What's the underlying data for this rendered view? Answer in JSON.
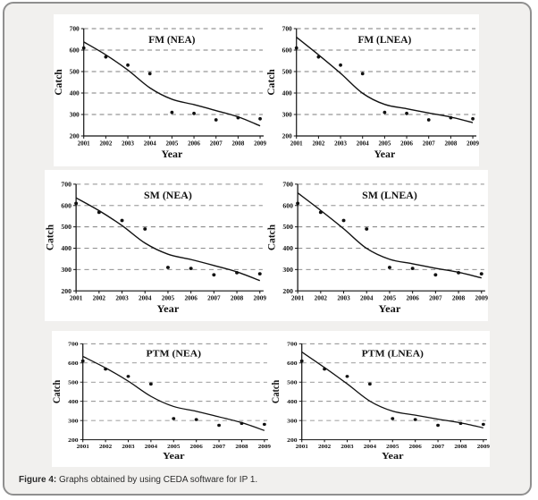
{
  "colors": {
    "card_bg": "#f1f0ee",
    "card_border": "#8f8f8f",
    "panel_bg": "#ffffff",
    "ink": "#111111",
    "grid": "#7d7d7d",
    "caption_text": "#2b2b2b"
  },
  "caption": {
    "prefix": "Figure 4:",
    "text": " Graphs obtained by using CEDA software for IP 1."
  },
  "axis": {
    "xlabel": "Year",
    "ylabel": "Catch",
    "yticks": [
      200,
      300,
      400,
      500,
      600,
      700
    ],
    "years": [
      2001,
      2002,
      2003,
      2004,
      2005,
      2006,
      2007,
      2008,
      2009
    ],
    "ylim": [
      200,
      700
    ],
    "grid": "dashed-horizontal",
    "legend": "none"
  },
  "chart_data": [
    {
      "type": "scatter",
      "title": "FM (NEA)",
      "xlabel": "Year",
      "ylabel": "Catch",
      "ylim": [
        200,
        700
      ],
      "x": [
        2001,
        2002,
        2003,
        2004,
        2005,
        2006,
        2007,
        2008,
        2009
      ],
      "series": [
        {
          "name": "observed-catch",
          "type": "scatter",
          "values": [
            610,
            568,
            530,
            490,
            310,
            305,
            275,
            285,
            280
          ]
        },
        {
          "name": "fitted-curve",
          "type": "line",
          "values": [
            638,
            578,
            507,
            424,
            371,
            346,
            318,
            289,
            247
          ]
        }
      ]
    },
    {
      "type": "scatter",
      "title": "FM (LNEA)",
      "xlabel": "Year",
      "ylabel": "Catch",
      "ylim": [
        200,
        700
      ],
      "x": [
        2001,
        2002,
        2003,
        2004,
        2005,
        2006,
        2007,
        2008,
        2009
      ],
      "series": [
        {
          "name": "observed-catch",
          "type": "scatter",
          "values": [
            610,
            568,
            530,
            490,
            310,
            305,
            275,
            285,
            280
          ]
        },
        {
          "name": "fitted-curve",
          "type": "line",
          "values": [
            660,
            578,
            492,
            399,
            347,
            327,
            307,
            288,
            262
          ]
        }
      ]
    },
    {
      "type": "scatter",
      "title": "SM (NEA)",
      "xlabel": "Year",
      "ylabel": "Catch",
      "ylim": [
        200,
        700
      ],
      "x": [
        2001,
        2002,
        2003,
        2004,
        2005,
        2006,
        2007,
        2008,
        2009
      ],
      "series": [
        {
          "name": "observed-catch",
          "type": "scatter",
          "values": [
            610,
            568,
            530,
            490,
            310,
            305,
            275,
            285,
            280
          ]
        },
        {
          "name": "fitted-curve",
          "type": "line",
          "values": [
            636,
            576,
            506,
            424,
            372,
            347,
            319,
            289,
            248
          ]
        }
      ]
    },
    {
      "type": "scatter",
      "title": "SM (LNEA)",
      "xlabel": "Year",
      "ylabel": "Catch",
      "ylim": [
        200,
        700
      ],
      "x": [
        2001,
        2002,
        2003,
        2004,
        2005,
        2006,
        2007,
        2008,
        2009
      ],
      "series": [
        {
          "name": "observed-catch",
          "type": "scatter",
          "values": [
            610,
            568,
            530,
            490,
            310,
            305,
            275,
            285,
            280
          ]
        },
        {
          "name": "fitted-curve",
          "type": "line",
          "values": [
            659,
            577,
            491,
            399,
            348,
            327,
            306,
            287,
            261
          ]
        }
      ]
    },
    {
      "type": "scatter",
      "title": "PTM (NEA)",
      "xlabel": "Year",
      "ylabel": "Catch",
      "ylim": [
        200,
        700
      ],
      "x": [
        2001,
        2002,
        2003,
        2004,
        2005,
        2006,
        2007,
        2008,
        2009
      ],
      "series": [
        {
          "name": "observed-catch",
          "type": "scatter",
          "values": [
            610,
            568,
            530,
            490,
            310,
            305,
            275,
            285,
            280
          ]
        },
        {
          "name": "fitted-curve",
          "type": "line",
          "values": [
            634,
            574,
            505,
            426,
            373,
            348,
            319,
            289,
            248
          ]
        }
      ]
    },
    {
      "type": "scatter",
      "title": "PTM (LNEA)",
      "xlabel": "Year",
      "ylabel": "Catch",
      "ylim": [
        200,
        700
      ],
      "x": [
        2001,
        2002,
        2003,
        2004,
        2005,
        2006,
        2007,
        2008,
        2009
      ],
      "series": [
        {
          "name": "observed-catch",
          "type": "scatter",
          "values": [
            610,
            568,
            530,
            490,
            310,
            305,
            275,
            285,
            280
          ]
        },
        {
          "name": "fitted-curve",
          "type": "line",
          "values": [
            657,
            576,
            491,
            401,
            349,
            328,
            307,
            288,
            262
          ]
        }
      ]
    }
  ]
}
